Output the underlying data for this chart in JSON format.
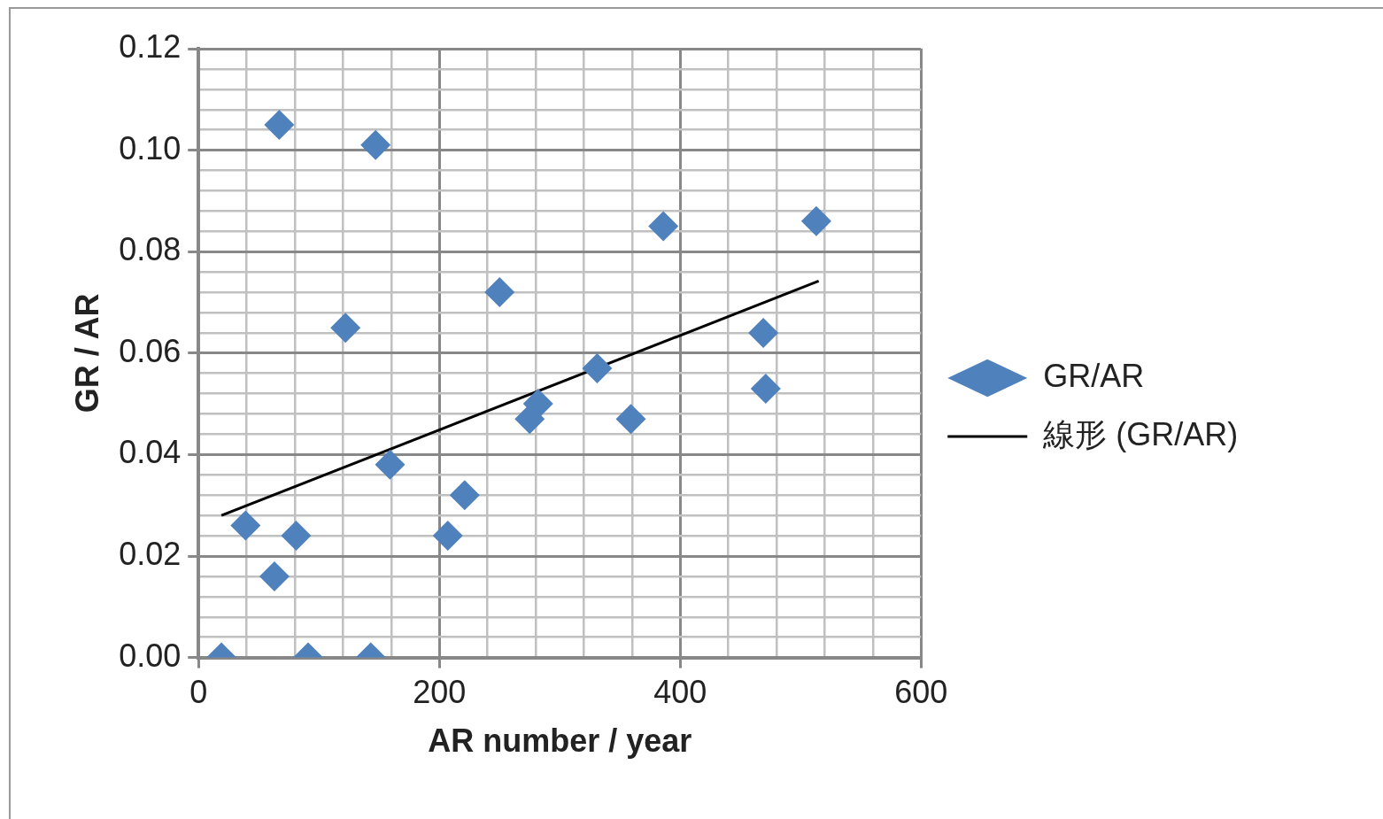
{
  "chart_data": {
    "type": "scatter",
    "xlabel": "AR number / year",
    "ylabel": "GR / AR",
    "xlim": [
      0,
      600
    ],
    "xticks": [
      0,
      {
        "value": 40,
        "label": null
      },
      {
        "value": 80,
        "label": null
      },
      {
        "value": 120,
        "label": null
      },
      {
        "value": 160,
        "label": null
      },
      200,
      {
        "value": 240,
        "label": null
      },
      {
        "value": 280,
        "label": null
      },
      {
        "value": 320,
        "label": null
      },
      {
        "value": 360,
        "label": null
      },
      400,
      {
        "value": 440,
        "label": null
      },
      {
        "value": 480,
        "label": null
      },
      {
        "value": 520,
        "label": null
      },
      {
        "value": 560,
        "label": null
      },
      600
    ],
    "ylim": [
      0,
      0.12
    ],
    "yticks": [
      {
        "value": 0,
        "label": "0.00"
      },
      {
        "value": 0.004,
        "label": null
      },
      {
        "value": 0.008,
        "label": null
      },
      {
        "value": 0.012,
        "label": null
      },
      {
        "value": 0.016,
        "label": null
      },
      {
        "value": 0.02,
        "label": "0.02"
      },
      {
        "value": 0.024,
        "label": null
      },
      {
        "value": 0.028,
        "label": null
      },
      {
        "value": 0.032,
        "label": null
      },
      {
        "value": 0.036,
        "label": null
      },
      {
        "value": 0.04,
        "label": "0.04"
      },
      {
        "value": 0.044,
        "label": null
      },
      {
        "value": 0.048,
        "label": null
      },
      {
        "value": 0.052,
        "label": null
      },
      {
        "value": 0.056,
        "label": null
      },
      {
        "value": 0.06,
        "label": "0.06"
      },
      {
        "value": 0.064,
        "label": null
      },
      {
        "value": 0.068,
        "label": null
      },
      {
        "value": 0.072,
        "label": null
      },
      {
        "value": 0.076,
        "label": null
      },
      {
        "value": 0.08,
        "label": "0.08"
      },
      {
        "value": 0.084,
        "label": null
      },
      {
        "value": 0.088,
        "label": null
      },
      {
        "value": 0.092,
        "label": null
      },
      {
        "value": 0.096,
        "label": null
      },
      {
        "value": 0.1,
        "label": "0.10"
      },
      {
        "value": 0.104,
        "label": null
      },
      {
        "value": 0.108,
        "label": null
      },
      {
        "value": 0.112,
        "label": null
      },
      {
        "value": 0.116,
        "label": null
      },
      {
        "value": 0.12,
        "label": "0.12"
      }
    ],
    "grid": true,
    "legend": "right",
    "series": [
      {
        "name": "GR/AR",
        "type": "scatter",
        "marker": "diamond",
        "color": "#4f81bd",
        "x": [
          19,
          39,
          63,
          67,
          81,
          91,
          122,
          143,
          147,
          159,
          207,
          221,
          250,
          275,
          282,
          331,
          359,
          386,
          469,
          471,
          513
        ],
        "values": [
          0,
          0.026,
          0.016,
          0.105,
          0.024,
          0,
          0.065,
          0,
          0.101,
          0.038,
          0.024,
          0.032,
          0.072,
          0.047,
          0.05,
          0.057,
          0.047,
          0.085,
          0.064,
          0.053,
          0.086
        ]
      },
      {
        "name": "線形 (GR/AR)",
        "type": "line",
        "marker": "none",
        "color": "#000000",
        "x": [
          19,
          515
        ],
        "values": [
          0.028,
          0.0742
        ]
      }
    ]
  }
}
